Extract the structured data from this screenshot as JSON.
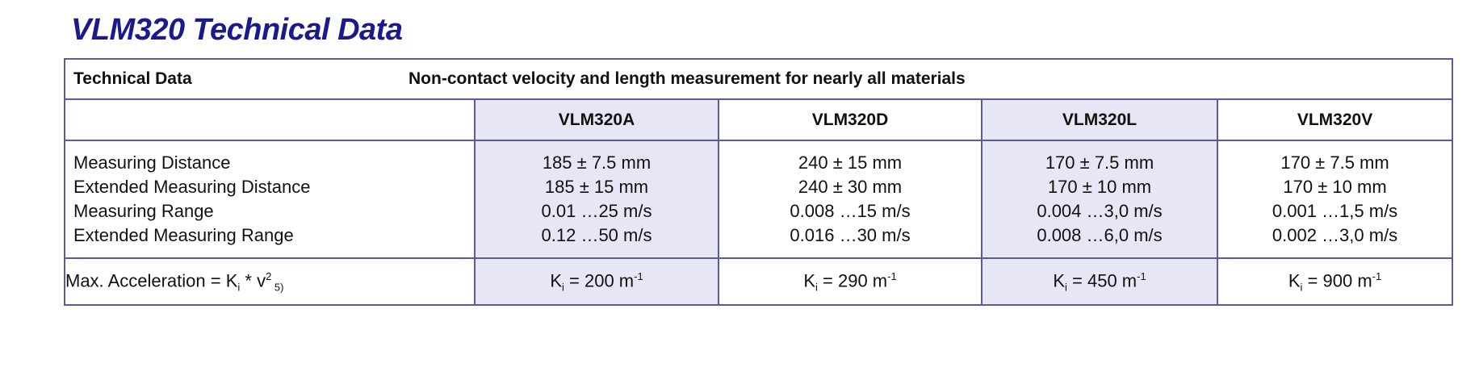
{
  "page": {
    "title": "VLM320 Technical Data"
  },
  "table": {
    "header_label": "Technical Data",
    "header_description": "Non-contact velocity and length measurement for nearly all materials",
    "models": [
      "VLM320A",
      "VLM320D",
      "VLM320L",
      "VLM320V"
    ],
    "row_labels": [
      "Measuring Distance",
      "Extended Measuring Distance",
      "Measuring Range",
      "Extended Measuring Range"
    ],
    "values": [
      [
        "185 ± 7.5 mm",
        "185 ± 15 mm",
        "0.01 …25 m/s",
        "0.12 …50 m/s"
      ],
      [
        "240 ± 15 mm",
        "240 ± 30 mm",
        "0.008 …15 m/s",
        "0.016 …30 m/s"
      ],
      [
        "170 ± 7.5 mm",
        "170 ± 10 mm",
        "0.004 …3,0 m/s",
        "0.008 …6,0 m/s"
      ],
      [
        "170 ± 7.5 mm",
        "170 ± 10 mm",
        "0.001 …1,5 m/s",
        "0.002 …3,0 m/s"
      ]
    ],
    "accel": {
      "label_prefix": "Max. Acceleration = K",
      "label_sub": "i",
      "label_mid": " * v",
      "label_exp": "2",
      "label_note": " 5)",
      "ki_prefix": "K",
      "ki_sub": "i",
      "values": [
        "= 200 m",
        "= 290 m",
        "= 450 m",
        "= 900 m"
      ],
      "unit_exp": "-1"
    },
    "colors": {
      "title": "#1a1a8c",
      "border": "#5a5a9e",
      "shade": "#e6e6f4"
    }
  }
}
